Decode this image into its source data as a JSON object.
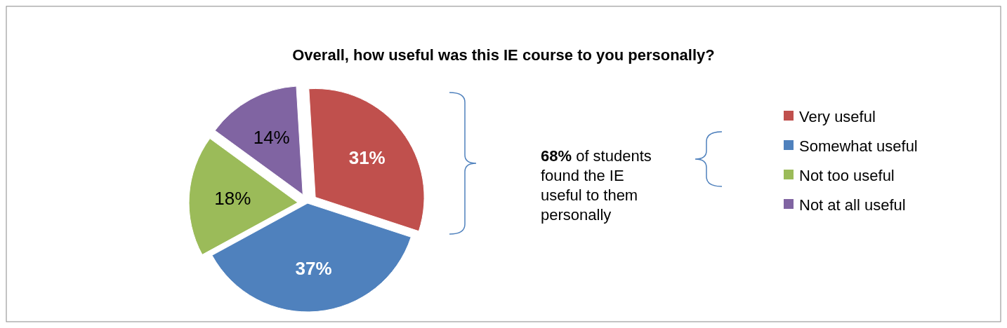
{
  "chart_data": {
    "type": "pie",
    "title": "Overall, how useful was this IE course to you personally?",
    "categories": [
      "Very useful",
      "Somewhat useful",
      "Not too useful",
      "Not at all useful"
    ],
    "values": [
      31,
      37,
      18,
      14
    ],
    "colors": [
      "#c0504d",
      "#4f81bd",
      "#9bbb59",
      "#8064a2"
    ],
    "value_labels": [
      "31%",
      "37%",
      "18%",
      "14%"
    ],
    "legend": "right",
    "annotations": [
      "68% of students found the IE useful to them personally"
    ]
  }
}
